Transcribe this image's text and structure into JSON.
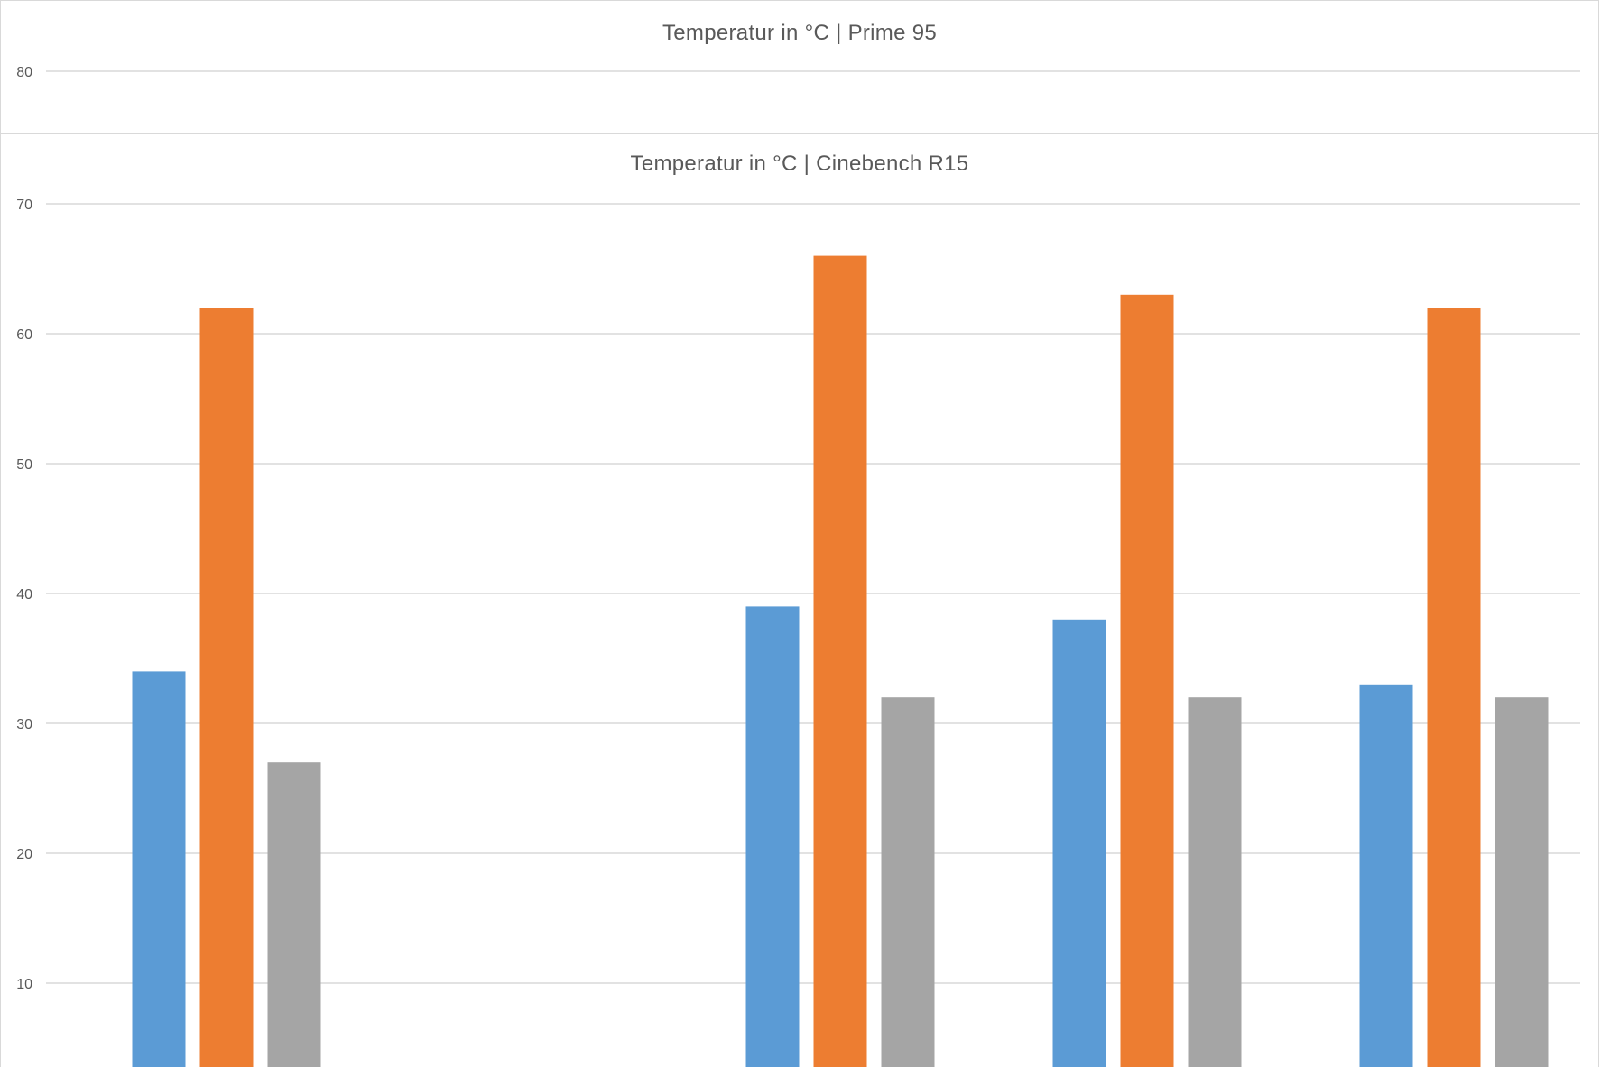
{
  "chart_data": [
    {
      "type": "bar",
      "title": "Temperatur in °C | Prime 95",
      "yticks": [
        80
      ],
      "ylim": [
        75,
        85
      ],
      "grid": true,
      "categories": [],
      "series": []
    },
    {
      "type": "bar",
      "title": "Temperatur in °C | Cinebench R15",
      "yticks": [
        10,
        20,
        30,
        40,
        50,
        60,
        70
      ],
      "ylim": [
        0,
        70
      ],
      "grid": true,
      "categories": [
        "",
        "",
        "",
        "",
        ""
      ],
      "series": [
        {
          "values": [
            34,
            null,
            39,
            38,
            33
          ],
          "color": "#5b9bd5"
        },
        {
          "values": [
            62,
            null,
            66,
            63,
            62
          ],
          "color": "#ed7d31"
        },
        {
          "values": [
            27,
            null,
            32,
            32,
            32
          ],
          "color": "#a5a5a5"
        }
      ]
    }
  ]
}
